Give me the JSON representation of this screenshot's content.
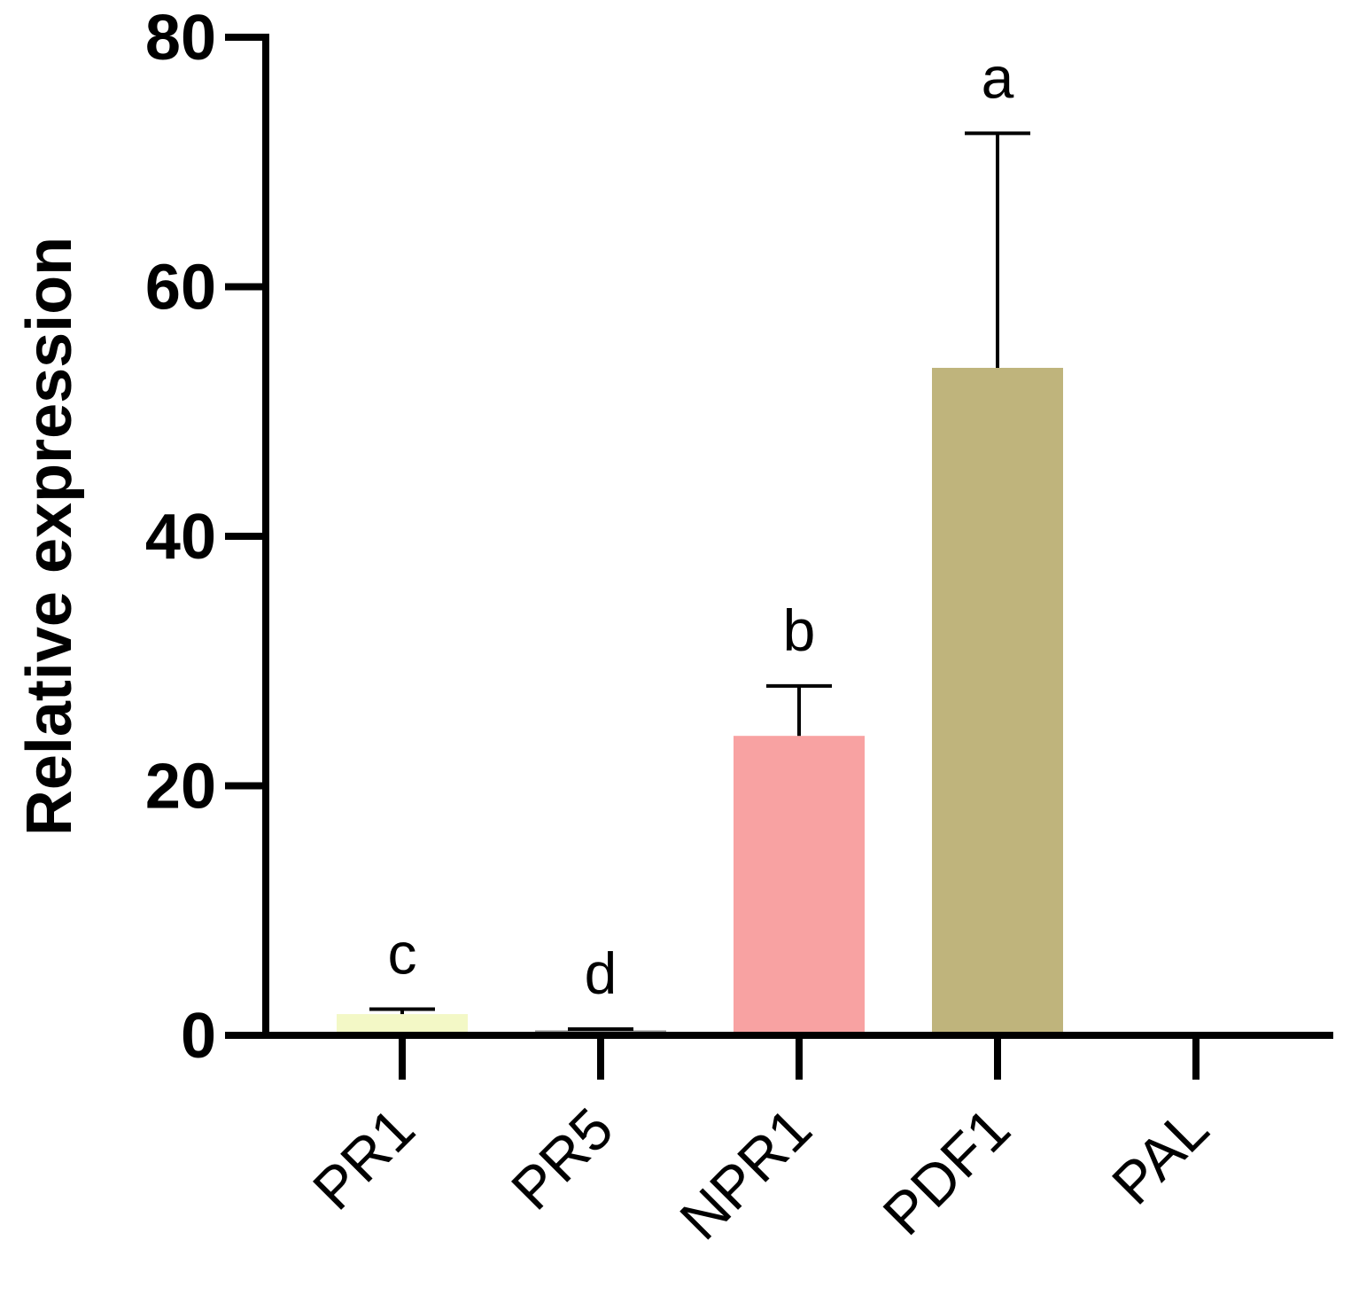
{
  "chart_data": {
    "type": "bar",
    "ylabel": "Relative expression",
    "ylim": [
      0,
      80
    ],
    "yticks": [
      0,
      20,
      40,
      60,
      80
    ],
    "grid": false,
    "legend": "none",
    "categories": [
      "PR1",
      "PR5",
      "NPR1",
      "PDF1",
      "PAL"
    ],
    "values": [
      1.7,
      0.4,
      24,
      53.5,
      0.2
    ],
    "error_upper": [
      2.1,
      0.5,
      28,
      72.3,
      0.2
    ],
    "significance": [
      "c",
      "d",
      "b",
      "a",
      ""
    ],
    "colors": [
      "#f3f8c6",
      "#9a9a9a",
      "#f8a2a2",
      "#bfb47c",
      "#9a9a9a"
    ]
  }
}
